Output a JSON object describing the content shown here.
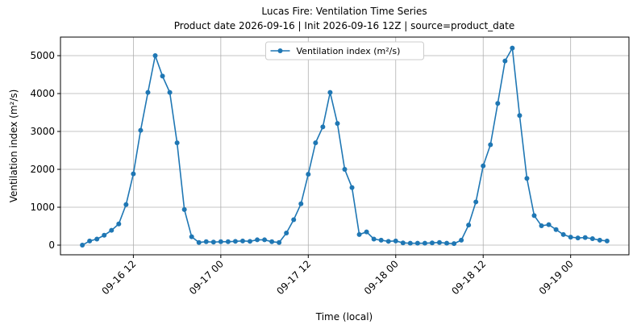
{
  "chart_data": {
    "type": "line",
    "title": "Lucas Fire: Ventilation Time Series",
    "subtitle": "Product date 2026-09-16 | Init 2026-09-16 12Z | source=product_date",
    "x_label": "Time (local)",
    "y_label": "Ventilation index (m²/s)",
    "x": [
      "09-16 05",
      "09-16 06",
      "09-16 07",
      "09-16 08",
      "09-16 09",
      "09-16 10",
      "09-16 11",
      "09-16 12",
      "09-16 13",
      "09-16 14",
      "09-16 15",
      "09-16 16",
      "09-16 17",
      "09-16 18",
      "09-16 19",
      "09-16 20",
      "09-16 21",
      "09-16 22",
      "09-16 23",
      "09-17 00",
      "09-17 01",
      "09-17 02",
      "09-17 03",
      "09-17 04",
      "09-17 05",
      "09-17 06",
      "09-17 07",
      "09-17 08",
      "09-17 09",
      "09-17 10",
      "09-17 11",
      "09-17 12",
      "09-17 13",
      "09-17 14",
      "09-17 15",
      "09-17 16",
      "09-17 17",
      "09-17 18",
      "09-17 19",
      "09-17 20",
      "09-17 21",
      "09-17 22",
      "09-17 23",
      "09-18 00",
      "09-18 01",
      "09-18 02",
      "09-18 03",
      "09-18 04",
      "09-18 05",
      "09-18 06",
      "09-18 07",
      "09-18 08",
      "09-18 09",
      "09-18 10",
      "09-18 11",
      "09-18 12",
      "09-18 13",
      "09-18 14",
      "09-18 15",
      "09-18 16",
      "09-18 17",
      "09-18 18",
      "09-18 19",
      "09-18 20",
      "09-18 21",
      "09-18 22",
      "09-18 23",
      "09-19 00",
      "09-19 01",
      "09-19 02",
      "09-19 03",
      "09-19 04",
      "09-19 05"
    ],
    "series": [
      {
        "name": "Ventilation index (m²/s)",
        "color": "#1f77b4",
        "values": [
          0,
          110,
          160,
          260,
          390,
          560,
          1070,
          1880,
          3030,
          4030,
          5000,
          4460,
          4030,
          2700,
          940,
          220,
          70,
          90,
          80,
          90,
          90,
          100,
          110,
          100,
          140,
          140,
          90,
          70,
          320,
          670,
          1090,
          1870,
          2700,
          3120,
          4030,
          3210,
          2000,
          1520,
          280,
          350,
          160,
          130,
          100,
          110,
          60,
          50,
          50,
          50,
          60,
          70,
          50,
          40,
          130,
          530,
          1140,
          2090,
          2650,
          3740,
          4860,
          5200,
          3420,
          1760,
          780,
          510,
          540,
          410,
          280,
          210,
          190,
          200,
          170,
          130,
          110
        ]
      }
    ],
    "xlim": [
      "09-16 02",
      "09-19 08"
    ],
    "xticks": [
      "09-16 12",
      "09-17 00",
      "09-17 12",
      "09-18 00",
      "09-18 12",
      "09-19 00"
    ],
    "ylim": [
      -255,
      5490
    ],
    "yticks": [
      0,
      1000,
      2000,
      3000,
      4000,
      5000
    ],
    "grid": true,
    "legend": "upper center"
  }
}
